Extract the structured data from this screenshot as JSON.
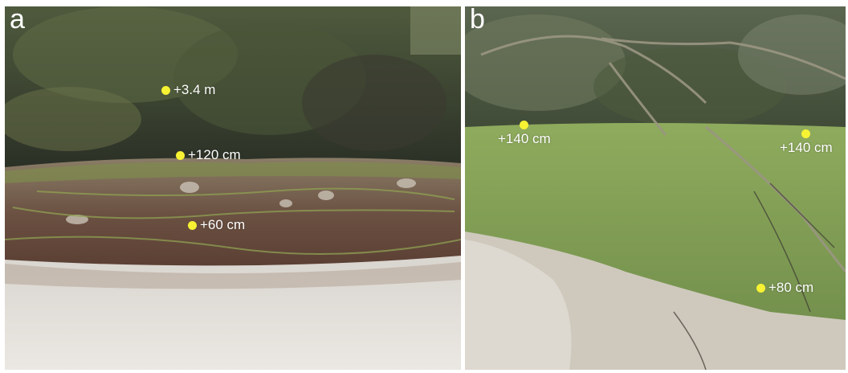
{
  "panels": [
    {
      "letter": "a",
      "markers": [
        {
          "label": "+3.4 m"
        },
        {
          "label": "+120 cm"
        },
        {
          "label": "+60 cm"
        }
      ]
    },
    {
      "letter": "b",
      "markers": [
        {
          "label": "+140 cm"
        },
        {
          "label": "+140 cm"
        },
        {
          "label": "+80 cm"
        }
      ]
    }
  ],
  "colors": {
    "marker": "#f7f233",
    "label": "#ffffff",
    "foliage": "#3d4a32",
    "sand": "#e4e1dc",
    "grass": "#8aa357",
    "soil": "#5e4637"
  }
}
